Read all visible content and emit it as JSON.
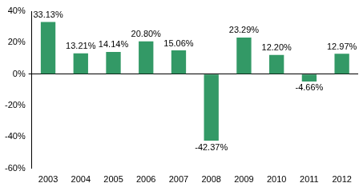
{
  "chart_data": {
    "type": "bar",
    "categories": [
      "2003",
      "2004",
      "2005",
      "2006",
      "2007",
      "2008",
      "2009",
      "2010",
      "2011",
      "2012"
    ],
    "values": [
      33.13,
      13.21,
      14.14,
      20.8,
      15.06,
      -42.37,
      23.29,
      12.2,
      -4.66,
      12.97
    ],
    "value_labels": [
      "33.13%",
      "13.21%",
      "14.14%",
      "20.80%",
      "15.06%",
      "-42.37%",
      "23.29%",
      "12.20%",
      "-4.66%",
      "12.97%"
    ],
    "color": "#339966",
    "ylim": [
      -60,
      40
    ],
    "yticks": [
      {
        "value": -60,
        "label": "-60%"
      },
      {
        "value": -40,
        "label": "-40%"
      },
      {
        "value": -20,
        "label": "-20%"
      },
      {
        "value": 0,
        "label": "0%"
      },
      {
        "value": 20,
        "label": "20%"
      },
      {
        "value": 40,
        "label": "40%"
      }
    ],
    "grid": false,
    "data_labels": true
  }
}
